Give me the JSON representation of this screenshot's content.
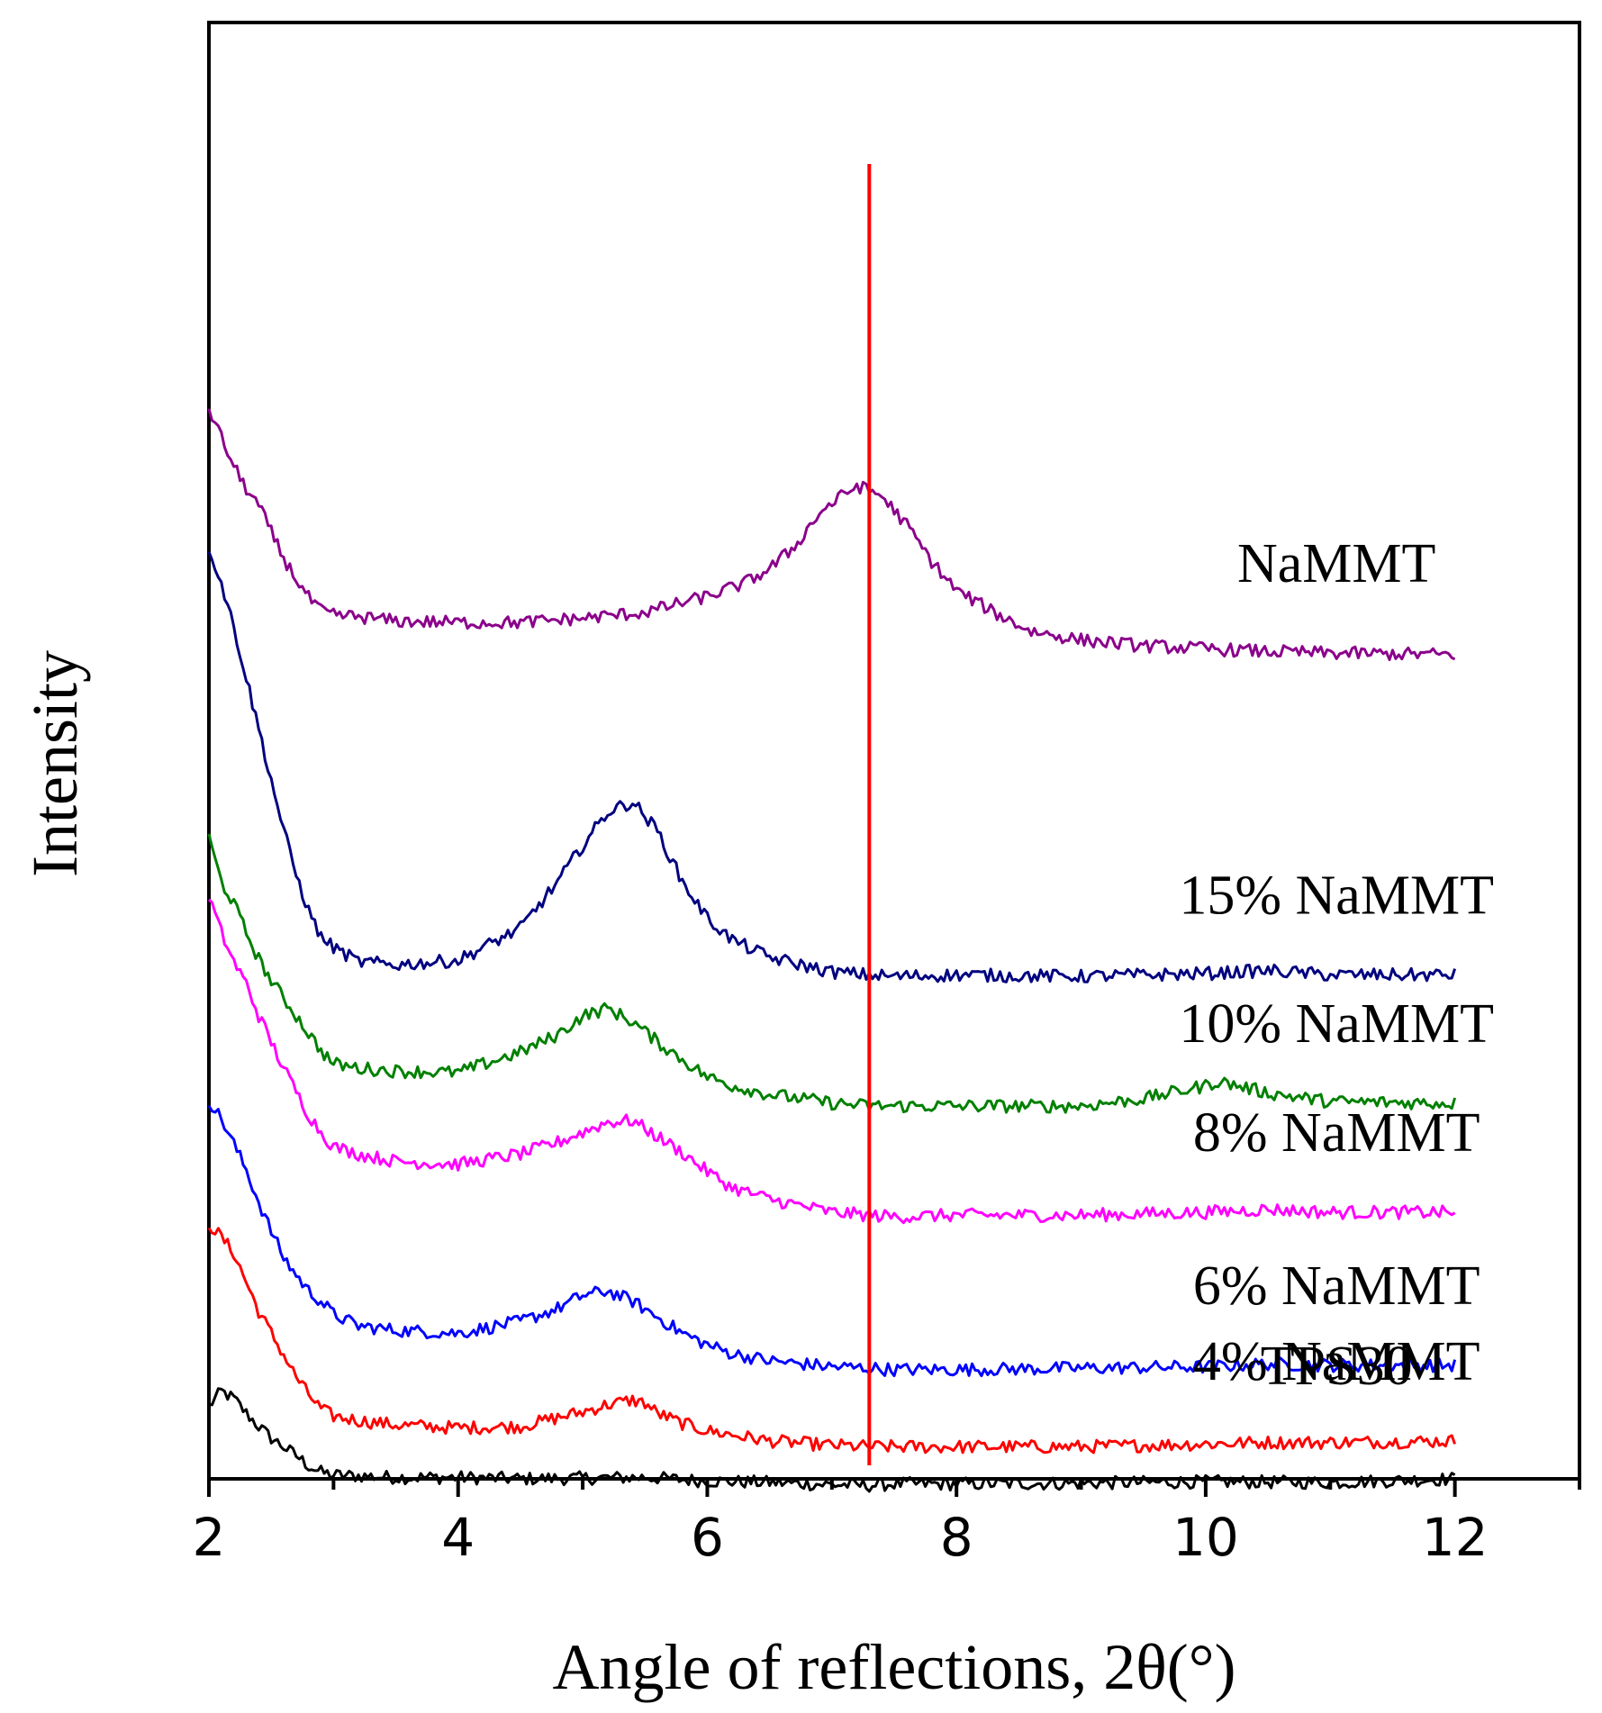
{
  "chart_data": {
    "type": "line",
    "title": "",
    "xlabel": "Angle of reflections, 2θ(°)",
    "ylabel": "Intensity",
    "xlim": [
      2,
      13
    ],
    "ylim": [
      0,
      100
    ],
    "x_ticks": [
      2,
      4,
      6,
      8,
      10,
      12
    ],
    "x_tick_labels": [
      "2",
      "4",
      "6",
      "8",
      "10",
      "12"
    ],
    "y_ticks_shown": false,
    "grid": false,
    "reference_line": {
      "x": 7.3,
      "color": "#ff0000"
    },
    "series": [
      {
        "name": "TPS30",
        "color": "#000000",
        "x": [
          2.0,
          2.1,
          2.2,
          2.3,
          2.4,
          2.5,
          2.6,
          2.7,
          2.8,
          2.9,
          3.0,
          3.2,
          3.5,
          4.0,
          4.5,
          5.0,
          5.5,
          6.0,
          6.5,
          7.0,
          7.3,
          7.5,
          8.0,
          9.0,
          10.0,
          11.0,
          12.0
        ],
        "y": [
          5.0,
          6.0,
          5.5,
          4.5,
          3.6,
          2.8,
          2.2,
          1.6,
          0.9,
          0.45,
          0.25,
          0.2,
          0.1,
          0.1,
          0.0,
          0.05,
          0.1,
          -0.15,
          -0.25,
          -0.4,
          -0.45,
          -0.35,
          -0.35,
          -0.3,
          -0.2,
          -0.25,
          0.0
        ]
      },
      {
        "name": "4% NaMMT",
        "color": "#ff0000",
        "x": [
          2.0,
          2.1,
          2.2,
          2.3,
          2.4,
          2.5,
          2.6,
          2.7,
          2.8,
          2.9,
          3.0,
          3.2,
          3.5,
          4.0,
          4.5,
          4.8,
          5.0,
          5.2,
          5.4,
          5.5,
          5.6,
          5.8,
          6.0,
          6.5,
          7.0,
          7.3,
          7.5,
          8.0,
          9.0,
          10.0,
          10.5,
          11.0,
          12.0
        ],
        "y": [
          17.5,
          16.6,
          15.5,
          13.5,
          11.5,
          10.0,
          8.5,
          7.0,
          5.8,
          4.8,
          4.3,
          4.0,
          3.7,
          3.5,
          3.6,
          4.2,
          4.6,
          5.1,
          5.4,
          5.2,
          4.5,
          3.8,
          3.3,
          2.6,
          2.3,
          2.2,
          2.2,
          2.2,
          2.2,
          2.4,
          2.5,
          2.5,
          2.6
        ]
      },
      {
        "name": "6% NaMMT",
        "color": "#0000ff",
        "x": [
          2.0,
          2.1,
          2.2,
          2.3,
          2.4,
          2.5,
          2.6,
          2.7,
          2.8,
          2.9,
          3.0,
          3.2,
          3.5,
          4.0,
          4.5,
          4.8,
          5.0,
          5.2,
          5.4,
          5.6,
          5.8,
          6.0,
          6.2,
          6.5,
          7.0,
          7.3,
          7.5,
          8.0,
          9.0,
          10.0,
          10.5,
          11.0,
          12.0
        ],
        "y": [
          26.0,
          24.7,
          23.0,
          21.2,
          19.0,
          17.0,
          15.2,
          14.0,
          12.9,
          12.2,
          11.3,
          10.5,
          10.2,
          10.0,
          10.8,
          11.7,
          12.6,
          12.9,
          12.2,
          11.1,
          10.0,
          9.2,
          8.6,
          8.1,
          7.7,
          7.6,
          7.5,
          7.5,
          7.6,
          7.7,
          7.9,
          7.8,
          7.8
        ]
      },
      {
        "name": "8% NaMMT",
        "color": "#ff00ff",
        "x": [
          2.0,
          2.1,
          2.2,
          2.3,
          2.4,
          2.5,
          2.6,
          2.7,
          2.8,
          2.9,
          3.0,
          3.2,
          3.5,
          4.0,
          4.5,
          4.8,
          5.0,
          5.2,
          5.4,
          5.6,
          5.8,
          6.0,
          6.2,
          6.5,
          7.0,
          7.3,
          7.5,
          8.0,
          9.0,
          10.0,
          10.5,
          11.0,
          12.0
        ],
        "y": [
          40.0,
          37.5,
          35.5,
          34.0,
          31.8,
          30.0,
          28.2,
          26.6,
          25.0,
          23.8,
          22.8,
          22.3,
          21.8,
          21.6,
          22.3,
          23.1,
          23.8,
          24.5,
          24.6,
          23.5,
          22.4,
          21.1,
          20.0,
          19.2,
          18.3,
          18.1,
          18.0,
          18.1,
          18.1,
          18.3,
          18.5,
          18.3,
          18.3
        ]
      },
      {
        "name": "10% NaMMT",
        "color": "#008000",
        "x": [
          2.0,
          2.1,
          2.2,
          2.3,
          2.4,
          2.5,
          2.6,
          2.7,
          2.8,
          2.9,
          3.0,
          3.2,
          3.5,
          4.0,
          4.5,
          4.8,
          5.0,
          5.2,
          5.4,
          5.6,
          5.8,
          6.0,
          6.2,
          6.5,
          7.0,
          7.3,
          7.5,
          8.0,
          9.0,
          9.5,
          10.0,
          10.1,
          10.5,
          11.0,
          12.0
        ],
        "y": [
          44.0,
          41.0,
          39.5,
          37.5,
          35.7,
          34.2,
          33.0,
          31.8,
          30.6,
          29.4,
          28.5,
          28.2,
          28.0,
          27.9,
          29.3,
          30.5,
          31.8,
          32.3,
          31.4,
          30.0,
          28.8,
          27.6,
          27.0,
          26.4,
          25.8,
          25.6,
          25.6,
          25.6,
          25.6,
          26.1,
          27.0,
          27.3,
          26.5,
          25.9,
          25.8
        ]
      },
      {
        "name": "15% NaMMT",
        "color": "#000080",
        "x": [
          2.0,
          2.1,
          2.2,
          2.3,
          2.4,
          2.5,
          2.6,
          2.7,
          2.8,
          2.9,
          3.0,
          3.2,
          3.5,
          4.0,
          4.5,
          4.8,
          5.0,
          5.2,
          5.4,
          5.6,
          5.8,
          6.0,
          6.2,
          6.5,
          7.0,
          7.3,
          7.5,
          8.0,
          9.0,
          10.0,
          10.5,
          11.0,
          12.0
        ],
        "y": [
          64.0,
          61.5,
          58.5,
          55.0,
          51.5,
          48.0,
          44.5,
          41.5,
          39.0,
          37.2,
          36.5,
          35.5,
          35.3,
          35.6,
          37.8,
          41.0,
          43.5,
          45.8,
          46.5,
          44.5,
          41.0,
          38.5,
          37.0,
          35.8,
          34.8,
          34.6,
          34.5,
          34.6,
          34.5,
          34.7,
          34.9,
          34.6,
          34.6
        ]
      },
      {
        "name": "NaMMT",
        "color": "#8b008b",
        "x": [
          2.0,
          2.1,
          2.2,
          2.3,
          2.4,
          2.5,
          2.6,
          2.7,
          2.8,
          2.9,
          3.0,
          3.2,
          3.5,
          4.0,
          4.5,
          5.0,
          5.5,
          6.0,
          6.3,
          6.5,
          6.7,
          6.9,
          7.0,
          7.2,
          7.4,
          7.6,
          7.8,
          8.0,
          8.3,
          8.6,
          9.0,
          9.5,
          10.0,
          10.5,
          11.0,
          12.0
        ],
        "y": [
          73.5,
          71.5,
          69.5,
          68.0,
          66.8,
          65.0,
          63.2,
          61.8,
          60.5,
          59.6,
          59.3,
          59.2,
          58.9,
          58.8,
          58.8,
          59.1,
          59.5,
          60.6,
          61.5,
          62.5,
          64.0,
          66.3,
          67.0,
          68.2,
          67.5,
          65.5,
          63.0,
          61.0,
          59.5,
          58.2,
          57.6,
          57.2,
          57.0,
          56.8,
          56.7,
          56.6
        ]
      }
    ],
    "series_labels": [
      "TPS30",
      "4% NaMMT",
      "6% NaMMT",
      "8% NaMMT",
      "10% NaMMT",
      "15% NaMMT",
      "NaMMT"
    ]
  }
}
